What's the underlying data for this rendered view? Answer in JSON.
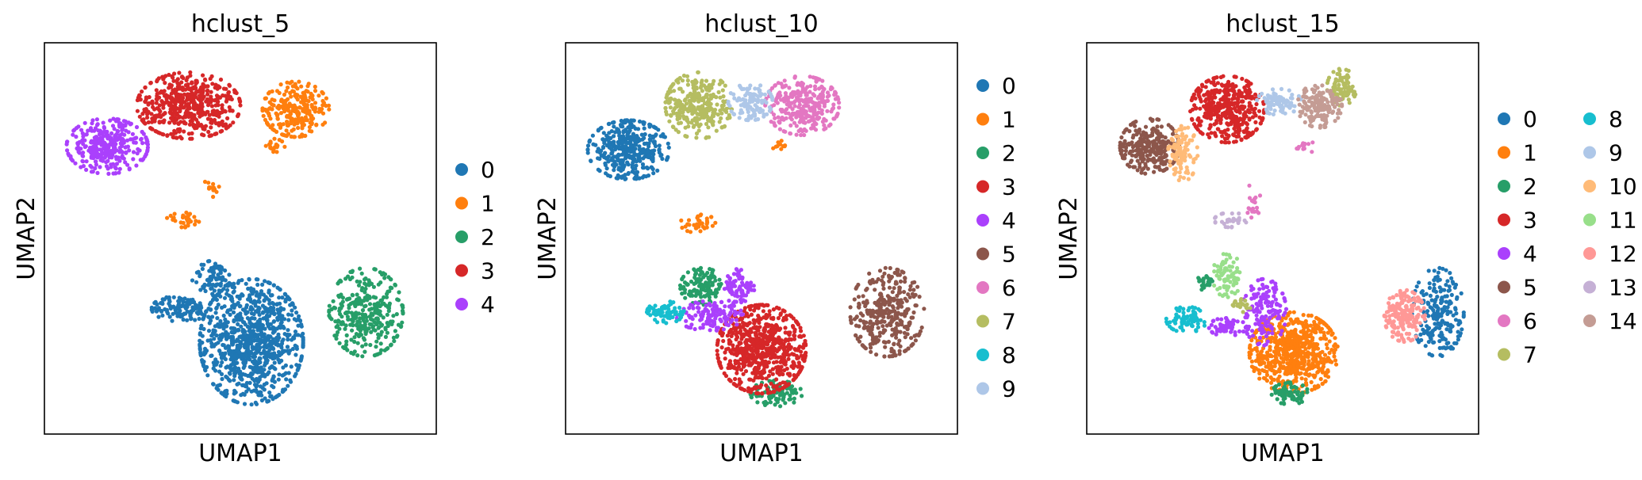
{
  "chart_data": [
    {
      "type": "scatter",
      "title": "hclust_5",
      "xlabel": "UMAP1",
      "ylabel": "UMAP2",
      "xlim": [
        0,
        10
      ],
      "ylim": [
        0,
        10
      ],
      "grid": false,
      "legend_position": "right",
      "series": [
        {
          "name": "0",
          "color": "#1f77b4",
          "blobs": [
            {
              "cx": 5.3,
              "cy": 2.2,
              "rx": 1.4,
              "ry": 1.7,
              "n": 900
            },
            {
              "cx": 3.4,
              "cy": 3.1,
              "rx": 0.8,
              "ry": 0.35,
              "n": 120
            },
            {
              "cx": 4.3,
              "cy": 3.9,
              "rx": 0.6,
              "ry": 0.5,
              "n": 80
            }
          ]
        },
        {
          "name": "1",
          "color": "#ff7f0e",
          "blobs": [
            {
              "cx": 6.5,
              "cy": 8.5,
              "rx": 0.9,
              "ry": 0.75,
              "n": 260
            },
            {
              "cx": 5.9,
              "cy": 7.5,
              "rx": 0.3,
              "ry": 0.2,
              "n": 18
            },
            {
              "cx": 3.5,
              "cy": 5.5,
              "rx": 0.5,
              "ry": 0.2,
              "n": 30
            },
            {
              "cx": 4.2,
              "cy": 6.3,
              "rx": 0.25,
              "ry": 0.3,
              "n": 14
            }
          ]
        },
        {
          "name": "2",
          "color": "#279e68",
          "blobs": [
            {
              "cx": 8.4,
              "cy": 3.0,
              "rx": 1.0,
              "ry": 1.2,
              "n": 330
            }
          ]
        },
        {
          "name": "3",
          "color": "#d62728",
          "blobs": [
            {
              "cx": 3.6,
              "cy": 8.6,
              "rx": 1.4,
              "ry": 0.9,
              "n": 520
            }
          ]
        },
        {
          "name": "4",
          "color": "#aa40fc",
          "blobs": [
            {
              "cx": 1.4,
              "cy": 7.5,
              "rx": 1.1,
              "ry": 0.75,
              "n": 330
            }
          ]
        }
      ]
    },
    {
      "type": "scatter",
      "title": "hclust_10",
      "xlabel": "UMAP1",
      "ylabel": "UMAP2",
      "xlim": [
        0,
        10
      ],
      "ylim": [
        0,
        10
      ],
      "grid": false,
      "legend_position": "right",
      "series": [
        {
          "name": "0",
          "color": "#1f77b4",
          "blobs": [
            {
              "cx": 1.4,
              "cy": 7.4,
              "rx": 1.1,
              "ry": 0.8,
              "n": 380
            }
          ]
        },
        {
          "name": "1",
          "color": "#ff7f0e",
          "blobs": [
            {
              "cx": 3.3,
              "cy": 5.4,
              "rx": 0.5,
              "ry": 0.25,
              "n": 35
            },
            {
              "cx": 5.5,
              "cy": 7.5,
              "rx": 0.2,
              "ry": 0.15,
              "n": 10
            }
          ]
        },
        {
          "name": "2",
          "color": "#279e68",
          "blobs": [
            {
              "cx": 3.4,
              "cy": 3.7,
              "rx": 0.6,
              "ry": 0.5,
              "n": 120
            },
            {
              "cx": 5.4,
              "cy": 0.8,
              "rx": 0.7,
              "ry": 0.35,
              "n": 90
            }
          ]
        },
        {
          "name": "3",
          "color": "#d62728",
          "blobs": [
            {
              "cx": 5.0,
              "cy": 2.0,
              "rx": 1.2,
              "ry": 1.2,
              "n": 700
            }
          ]
        },
        {
          "name": "4",
          "color": "#aa40fc",
          "blobs": [
            {
              "cx": 3.6,
              "cy": 2.9,
              "rx": 0.9,
              "ry": 0.4,
              "n": 120
            },
            {
              "cx": 4.4,
              "cy": 3.6,
              "rx": 0.4,
              "ry": 0.6,
              "n": 80
            }
          ]
        },
        {
          "name": "5",
          "color": "#8c564b",
          "blobs": [
            {
              "cx": 8.4,
              "cy": 3.0,
              "rx": 1.0,
              "ry": 1.2,
              "n": 330
            }
          ]
        },
        {
          "name": "6",
          "color": "#e377c2",
          "blobs": [
            {
              "cx": 6.1,
              "cy": 8.6,
              "rx": 1.0,
              "ry": 0.8,
              "n": 300
            }
          ]
        },
        {
          "name": "7",
          "color": "#b5bd61",
          "blobs": [
            {
              "cx": 3.3,
              "cy": 8.6,
              "rx": 0.9,
              "ry": 0.9,
              "n": 300
            }
          ]
        },
        {
          "name": "8",
          "color": "#17becf",
          "blobs": [
            {
              "cx": 2.4,
              "cy": 3.0,
              "rx": 0.5,
              "ry": 0.3,
              "n": 70
            }
          ]
        },
        {
          "name": "9",
          "color": "#aec7e8",
          "blobs": [
            {
              "cx": 4.7,
              "cy": 8.7,
              "rx": 0.6,
              "ry": 0.5,
              "n": 110
            }
          ]
        }
      ]
    },
    {
      "type": "scatter",
      "title": "hclust_15",
      "xlabel": "UMAP1",
      "ylabel": "UMAP2",
      "xlim": [
        0,
        10
      ],
      "ylim": [
        0,
        10
      ],
      "grid": false,
      "legend_position": "right",
      "series": [
        {
          "name": "0",
          "color": "#1f77b4",
          "blobs": [
            {
              "cx": 9.2,
              "cy": 3.0,
              "rx": 0.7,
              "ry": 1.2,
              "n": 200
            }
          ]
        },
        {
          "name": "1",
          "color": "#ff7f0e",
          "blobs": [
            {
              "cx": 5.3,
              "cy": 1.9,
              "rx": 1.2,
              "ry": 1.1,
              "n": 650
            }
          ]
        },
        {
          "name": "2",
          "color": "#279e68",
          "blobs": [
            {
              "cx": 5.2,
              "cy": 0.8,
              "rx": 0.5,
              "ry": 0.3,
              "n": 70
            },
            {
              "cx": 2.9,
              "cy": 3.8,
              "rx": 0.25,
              "ry": 0.2,
              "n": 25
            }
          ]
        },
        {
          "name": "3",
          "color": "#d62728",
          "blobs": [
            {
              "cx": 3.5,
              "cy": 8.5,
              "rx": 1.0,
              "ry": 0.9,
              "n": 420
            }
          ]
        },
        {
          "name": "4",
          "color": "#aa40fc",
          "blobs": [
            {
              "cx": 4.5,
              "cy": 3.0,
              "rx": 0.6,
              "ry": 0.9,
              "n": 160
            },
            {
              "cx": 3.5,
              "cy": 2.6,
              "rx": 0.5,
              "ry": 0.25,
              "n": 50
            }
          ]
        },
        {
          "name": "5",
          "color": "#8c564b",
          "blobs": [
            {
              "cx": 1.4,
              "cy": 7.5,
              "rx": 0.8,
              "ry": 0.75,
              "n": 260
            }
          ]
        },
        {
          "name": "6",
          "color": "#e377c2",
          "blobs": [
            {
              "cx": 4.2,
              "cy": 6.0,
              "rx": 0.2,
              "ry": 0.5,
              "n": 18
            },
            {
              "cx": 5.6,
              "cy": 7.5,
              "rx": 0.3,
              "ry": 0.2,
              "n": 12
            }
          ]
        },
        {
          "name": "7",
          "color": "#b5bd61",
          "blobs": [
            {
              "cx": 6.6,
              "cy": 9.1,
              "rx": 0.4,
              "ry": 0.5,
              "n": 80
            },
            {
              "cx": 3.9,
              "cy": 3.2,
              "rx": 0.25,
              "ry": 0.2,
              "n": 20
            }
          ]
        },
        {
          "name": "8",
          "color": "#17becf",
          "blobs": [
            {
              "cx": 2.4,
              "cy": 2.8,
              "rx": 0.55,
              "ry": 0.35,
              "n": 80
            }
          ]
        },
        {
          "name": "9",
          "color": "#aec7e8",
          "blobs": [
            {
              "cx": 4.9,
              "cy": 8.7,
              "rx": 0.6,
              "ry": 0.35,
              "n": 90
            }
          ]
        },
        {
          "name": "10",
          "color": "#ffbb78",
          "blobs": [
            {
              "cx": 2.3,
              "cy": 7.3,
              "rx": 0.4,
              "ry": 0.75,
              "n": 100
            }
          ]
        },
        {
          "name": "11",
          "color": "#98df8a",
          "blobs": [
            {
              "cx": 3.5,
              "cy": 4.0,
              "rx": 0.4,
              "ry": 0.6,
              "n": 80
            }
          ]
        },
        {
          "name": "12",
          "color": "#ff9896",
          "blobs": [
            {
              "cx": 8.3,
              "cy": 2.9,
              "rx": 0.55,
              "ry": 0.7,
              "n": 170
            }
          ]
        },
        {
          "name": "13",
          "color": "#c5b0d5",
          "blobs": [
            {
              "cx": 3.6,
              "cy": 5.5,
              "rx": 0.45,
              "ry": 0.2,
              "n": 30
            }
          ]
        },
        {
          "name": "14",
          "color": "#c49c94",
          "blobs": [
            {
              "cx": 6.0,
              "cy": 8.6,
              "rx": 0.6,
              "ry": 0.6,
              "n": 160
            }
          ]
        }
      ]
    }
  ]
}
